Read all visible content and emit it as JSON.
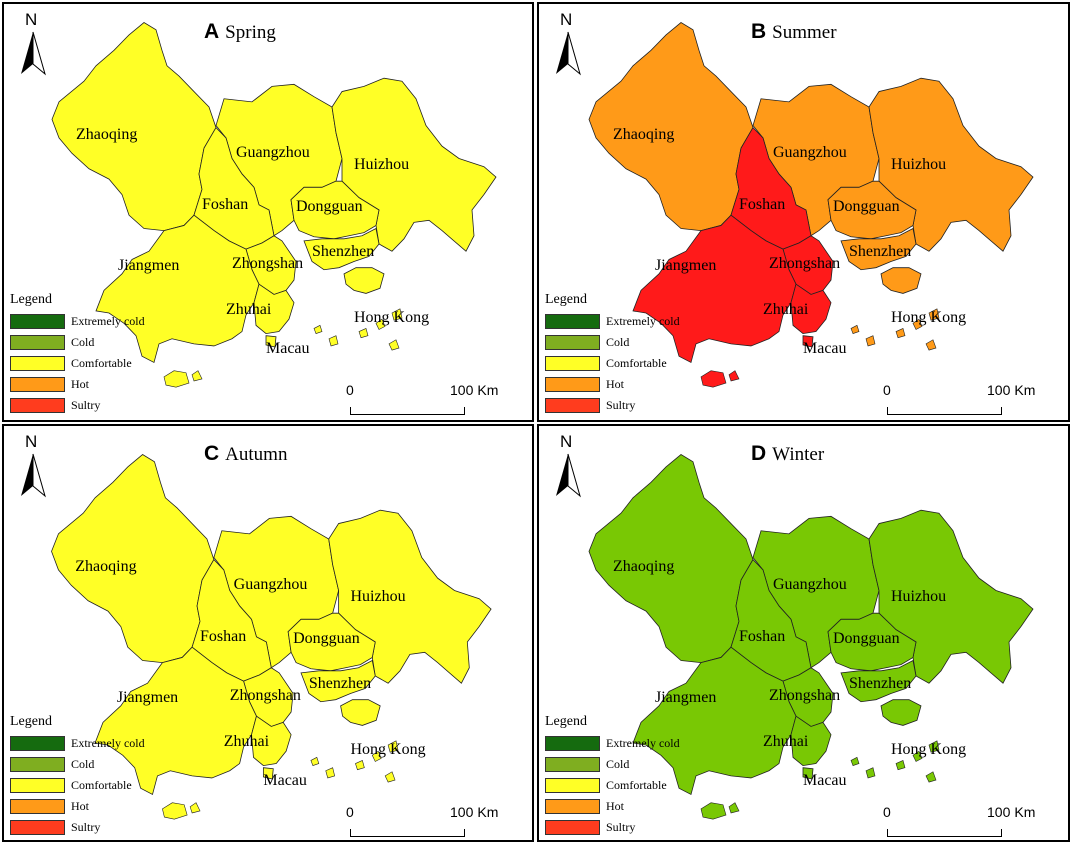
{
  "legend": {
    "title": "Legend",
    "items": [
      {
        "label": "Extremely cold",
        "color": "#156b0f"
      },
      {
        "label": "Cold",
        "color": "#7fae20"
      },
      {
        "label": "Comfortable",
        "color": "#ffff26"
      },
      {
        "label": "Hot",
        "color": "#ff9a18"
      },
      {
        "label": "Sultry",
        "color": "#ff3c1e"
      }
    ]
  },
  "north_label": "N",
  "scale": {
    "zero": "0",
    "max": "100",
    "unit": "Km"
  },
  "cities": [
    "Zhaoqing",
    "Guangzhou",
    "Huizhou",
    "Foshan",
    "Dongguan",
    "Shenzhen",
    "Zhongshan",
    "Jiangmen",
    "Zhuhai",
    "Hong Kong",
    "Macau"
  ],
  "panels": [
    {
      "letter": "A",
      "season": "Spring",
      "base_color": "#ffff26",
      "overrides": {}
    },
    {
      "letter": "B",
      "season": "Summer",
      "base_color": "#ff9a18",
      "overrides": {
        "Foshan": "#ff1a1a",
        "Jiangmen": "#ff1a1a",
        "Zhongshan": "#ff1a1a",
        "Zhuhai": "#ff1a1a",
        "Macau": "#ff1a1a"
      }
    },
    {
      "letter": "C",
      "season": "Autumn",
      "base_color": "#ffff26",
      "overrides": {}
    },
    {
      "letter": "D",
      "season": "Winter",
      "base_color": "#79c804",
      "overrides": {}
    }
  ]
}
